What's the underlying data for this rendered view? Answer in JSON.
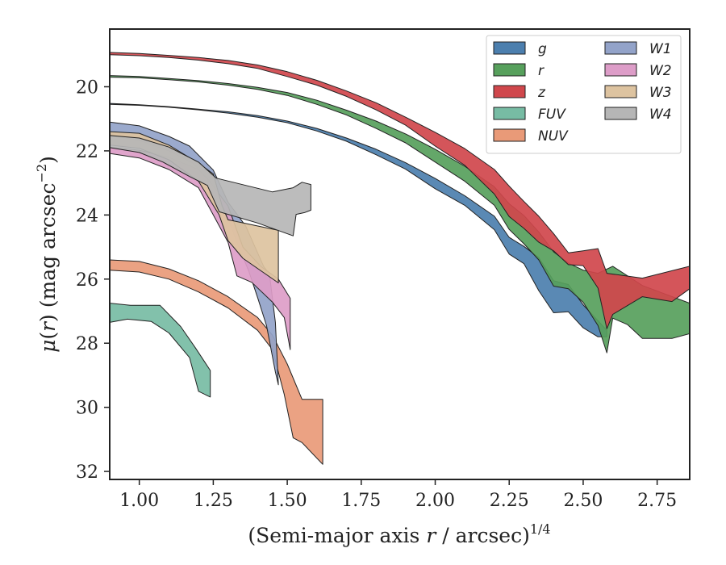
{
  "chart_data": {
    "type": "area",
    "title": "",
    "xlabel": "(Semi-major axis r / arcsec)^{1/4}",
    "ylabel": "μ(r) (mag arcsec^{−2})",
    "xlim": [
      0.9,
      2.86
    ],
    "ylim": [
      32.25,
      18.2
    ],
    "y_inverted": true,
    "grid": false,
    "legend_position": "top-right",
    "legend_columns": 2,
    "x_ticks": [
      "1.00",
      "1.25",
      "1.50",
      "1.75",
      "2.00",
      "2.25",
      "2.50",
      "2.75"
    ],
    "y_ticks": [
      "20",
      "22",
      "24",
      "26",
      "28",
      "30",
      "32"
    ],
    "series": [
      {
        "name": "g",
        "color": "#4c7fae",
        "upper": [
          [
            0.9,
            20.52
          ],
          [
            1.0,
            20.56
          ],
          [
            1.1,
            20.62
          ],
          [
            1.2,
            20.7
          ],
          [
            1.3,
            20.78
          ],
          [
            1.4,
            20.9
          ],
          [
            1.5,
            21.07
          ],
          [
            1.6,
            21.3
          ],
          [
            1.7,
            21.6
          ],
          [
            1.8,
            21.95
          ],
          [
            1.9,
            22.37
          ],
          [
            2.0,
            22.86
          ],
          [
            2.1,
            23.4
          ],
          [
            2.2,
            24.04
          ],
          [
            2.25,
            24.7
          ],
          [
            2.3,
            24.98
          ],
          [
            2.35,
            25.33
          ],
          [
            2.4,
            26.05
          ],
          [
            2.45,
            26.17
          ],
          [
            2.5,
            26.8
          ],
          [
            2.55,
            27.3
          ],
          [
            2.58,
            27.6
          ]
        ],
        "lower": [
          [
            2.58,
            27.8
          ],
          [
            2.55,
            27.8
          ],
          [
            2.5,
            27.52
          ],
          [
            2.45,
            27.02
          ],
          [
            2.4,
            27.05
          ],
          [
            2.35,
            26.36
          ],
          [
            2.3,
            25.52
          ],
          [
            2.25,
            25.22
          ],
          [
            2.2,
            24.46
          ],
          [
            2.1,
            23.7
          ],
          [
            2.0,
            23.18
          ],
          [
            1.9,
            22.57
          ],
          [
            1.8,
            22.12
          ],
          [
            1.7,
            21.7
          ],
          [
            1.6,
            21.38
          ],
          [
            1.5,
            21.12
          ],
          [
            1.4,
            20.95
          ],
          [
            1.3,
            20.82
          ],
          [
            1.2,
            20.72
          ],
          [
            1.1,
            20.64
          ],
          [
            1.0,
            20.58
          ],
          [
            0.9,
            20.55
          ]
        ]
      },
      {
        "name": "r",
        "color": "#57a05c",
        "upper": [
          [
            0.9,
            19.65
          ],
          [
            1.0,
            19.68
          ],
          [
            1.1,
            19.74
          ],
          [
            1.2,
            19.81
          ],
          [
            1.3,
            19.9
          ],
          [
            1.4,
            20.02
          ],
          [
            1.5,
            20.18
          ],
          [
            1.6,
            20.42
          ],
          [
            1.7,
            20.73
          ],
          [
            1.8,
            21.07
          ],
          [
            1.9,
            21.47
          ],
          [
            2.0,
            21.95
          ],
          [
            2.1,
            22.48
          ],
          [
            2.2,
            23.12
          ],
          [
            2.25,
            23.65
          ],
          [
            2.3,
            24.02
          ],
          [
            2.35,
            24.53
          ],
          [
            2.4,
            25.15
          ],
          [
            2.45,
            25.5
          ],
          [
            2.5,
            25.72
          ],
          [
            2.55,
            25.82
          ],
          [
            2.6,
            25.6
          ],
          [
            2.7,
            26.2
          ],
          [
            2.86,
            26.75
          ]
        ],
        "lower": [
          [
            2.86,
            27.7
          ],
          [
            2.8,
            27.85
          ],
          [
            2.7,
            27.85
          ],
          [
            2.65,
            27.42
          ],
          [
            2.6,
            27.22
          ],
          [
            2.58,
            28.3
          ],
          [
            2.55,
            27.45
          ],
          [
            2.5,
            26.72
          ],
          [
            2.45,
            26.3
          ],
          [
            2.4,
            26.22
          ],
          [
            2.35,
            25.4
          ],
          [
            2.3,
            24.9
          ],
          [
            2.25,
            24.45
          ],
          [
            2.2,
            23.7
          ],
          [
            2.1,
            22.95
          ],
          [
            2.0,
            22.35
          ],
          [
            1.9,
            21.75
          ],
          [
            1.8,
            21.3
          ],
          [
            1.7,
            20.88
          ],
          [
            1.6,
            20.55
          ],
          [
            1.5,
            20.27
          ],
          [
            1.4,
            20.08
          ],
          [
            1.3,
            19.95
          ],
          [
            1.2,
            19.85
          ],
          [
            1.1,
            19.78
          ],
          [
            1.0,
            19.72
          ],
          [
            0.9,
            19.7
          ]
        ]
      },
      {
        "name": "z",
        "color": "#d0474c",
        "upper": [
          [
            0.9,
            18.93
          ],
          [
            1.0,
            18.96
          ],
          [
            1.1,
            19.02
          ],
          [
            1.2,
            19.09
          ],
          [
            1.3,
            19.18
          ],
          [
            1.4,
            19.32
          ],
          [
            1.5,
            19.53
          ],
          [
            1.6,
            19.8
          ],
          [
            1.7,
            20.13
          ],
          [
            1.8,
            20.5
          ],
          [
            1.9,
            20.95
          ],
          [
            2.0,
            21.42
          ],
          [
            2.1,
            21.93
          ],
          [
            2.2,
            22.58
          ],
          [
            2.25,
            23.1
          ],
          [
            2.3,
            23.58
          ],
          [
            2.35,
            24.04
          ],
          [
            2.4,
            24.58
          ],
          [
            2.45,
            25.18
          ],
          [
            2.5,
            25.12
          ],
          [
            2.55,
            25.05
          ],
          [
            2.58,
            25.82
          ],
          [
            2.7,
            25.97
          ],
          [
            2.86,
            25.6
          ]
        ],
        "lower": [
          [
            2.86,
            26.3
          ],
          [
            2.8,
            26.7
          ],
          [
            2.7,
            26.55
          ],
          [
            2.6,
            27.1
          ],
          [
            2.58,
            27.55
          ],
          [
            2.55,
            26.28
          ],
          [
            2.5,
            25.58
          ],
          [
            2.45,
            25.55
          ],
          [
            2.4,
            25.12
          ],
          [
            2.35,
            24.85
          ],
          [
            2.3,
            24.42
          ],
          [
            2.25,
            24.05
          ],
          [
            2.2,
            23.35
          ],
          [
            2.1,
            22.45
          ],
          [
            2.0,
            21.85
          ],
          [
            1.9,
            21.2
          ],
          [
            1.8,
            20.72
          ],
          [
            1.7,
            20.3
          ],
          [
            1.6,
            19.95
          ],
          [
            1.5,
            19.68
          ],
          [
            1.4,
            19.43
          ],
          [
            1.3,
            19.28
          ],
          [
            1.2,
            19.17
          ],
          [
            1.1,
            19.09
          ],
          [
            1.0,
            19.03
          ],
          [
            0.9,
            19.0
          ]
        ]
      },
      {
        "name": "FUV",
        "color": "#77bca4",
        "upper": [
          [
            0.9,
            26.75
          ],
          [
            0.97,
            26.82
          ],
          [
            1.07,
            26.82
          ],
          [
            1.14,
            27.48
          ],
          [
            1.19,
            28.15
          ],
          [
            1.24,
            28.85
          ]
        ],
        "lower": [
          [
            1.24,
            29.68
          ],
          [
            1.2,
            29.5
          ],
          [
            1.17,
            28.45
          ],
          [
            1.1,
            27.68
          ],
          [
            1.04,
            27.32
          ],
          [
            0.96,
            27.25
          ],
          [
            0.9,
            27.35
          ]
        ]
      },
      {
        "name": "NUV",
        "color": "#e99a78",
        "upper": [
          [
            0.9,
            25.4
          ],
          [
            1.0,
            25.45
          ],
          [
            1.1,
            25.68
          ],
          [
            1.2,
            26.05
          ],
          [
            1.3,
            26.55
          ],
          [
            1.4,
            27.2
          ],
          [
            1.45,
            27.75
          ],
          [
            1.5,
            28.65
          ],
          [
            1.55,
            29.75
          ],
          [
            1.62,
            29.75
          ]
        ],
        "lower": [
          [
            1.62,
            31.78
          ],
          [
            1.55,
            31.1
          ],
          [
            1.52,
            30.95
          ],
          [
            1.49,
            29.6
          ],
          [
            1.45,
            28.2
          ],
          [
            1.4,
            27.6
          ],
          [
            1.3,
            26.9
          ],
          [
            1.2,
            26.4
          ],
          [
            1.1,
            26.0
          ],
          [
            1.0,
            25.78
          ],
          [
            0.9,
            25.72
          ]
        ]
      },
      {
        "name": "W1",
        "color": "#93a3c9",
        "upper": [
          [
            0.9,
            21.1
          ],
          [
            1.0,
            21.22
          ],
          [
            1.1,
            21.55
          ],
          [
            1.17,
            21.85
          ],
          [
            1.25,
            22.6
          ],
          [
            1.3,
            23.6
          ],
          [
            1.36,
            24.35
          ],
          [
            1.42,
            25.6
          ],
          [
            1.44,
            25.85
          ],
          [
            1.46,
            27.35
          ],
          [
            1.47,
            29.3
          ]
        ],
        "lower": [
          [
            1.47,
            29.3
          ],
          [
            1.46,
            28.9
          ],
          [
            1.43,
            27.45
          ],
          [
            1.4,
            26.58
          ],
          [
            1.37,
            25.75
          ],
          [
            1.33,
            24.85
          ],
          [
            1.28,
            23.65
          ],
          [
            1.24,
            22.95
          ],
          [
            1.18,
            22.38
          ],
          [
            1.1,
            22.0
          ],
          [
            1.0,
            21.68
          ],
          [
            0.9,
            21.5
          ]
        ]
      },
      {
        "name": "W2",
        "color": "#dd9dc8",
        "upper": [
          [
            0.9,
            21.88
          ],
          [
            1.0,
            21.98
          ],
          [
            1.1,
            22.2
          ],
          [
            1.2,
            22.58
          ],
          [
            1.25,
            23.1
          ],
          [
            1.3,
            23.72
          ],
          [
            1.35,
            25.0
          ],
          [
            1.41,
            25.6
          ],
          [
            1.47,
            26.0
          ],
          [
            1.51,
            26.6
          ],
          [
            1.51,
            28.2
          ]
        ],
        "lower": [
          [
            1.51,
            28.2
          ],
          [
            1.49,
            27.2
          ],
          [
            1.45,
            26.72
          ],
          [
            1.38,
            26.1
          ],
          [
            1.33,
            25.9
          ],
          [
            1.3,
            24.85
          ],
          [
            1.25,
            24.0
          ],
          [
            1.2,
            23.15
          ],
          [
            1.1,
            22.58
          ],
          [
            1.0,
            22.22
          ],
          [
            0.9,
            22.08
          ]
        ]
      },
      {
        "name": "W3",
        "color": "#ddc3a0",
        "upper": [
          [
            0.9,
            21.4
          ],
          [
            1.0,
            21.45
          ],
          [
            1.1,
            21.82
          ],
          [
            1.2,
            22.38
          ],
          [
            1.25,
            22.72
          ],
          [
            1.28,
            23.72
          ],
          [
            1.3,
            24.15
          ],
          [
            1.47,
            24.48
          ]
        ],
        "lower": [
          [
            1.47,
            26.12
          ],
          [
            1.35,
            25.35
          ],
          [
            1.3,
            24.8
          ],
          [
            1.27,
            24.0
          ],
          [
            1.2,
            22.95
          ],
          [
            1.1,
            22.28
          ],
          [
            1.0,
            21.92
          ],
          [
            0.9,
            21.82
          ]
        ]
      },
      {
        "name": "W4",
        "color": "#b6b6b6",
        "upper": [
          [
            0.9,
            21.52
          ],
          [
            1.0,
            21.6
          ],
          [
            1.1,
            21.88
          ],
          [
            1.2,
            22.35
          ],
          [
            1.26,
            22.85
          ],
          [
            1.45,
            23.28
          ],
          [
            1.52,
            23.15
          ],
          [
            1.55,
            22.98
          ],
          [
            1.58,
            23.05
          ]
        ],
        "lower": [
          [
            1.58,
            23.85
          ],
          [
            1.56,
            23.92
          ],
          [
            1.53,
            23.98
          ],
          [
            1.52,
            24.65
          ],
          [
            1.4,
            24.25
          ],
          [
            1.27,
            23.9
          ],
          [
            1.23,
            23.08
          ],
          [
            1.17,
            22.8
          ],
          [
            1.08,
            22.35
          ],
          [
            1.0,
            22.05
          ],
          [
            0.9,
            21.9
          ]
        ]
      }
    ]
  }
}
